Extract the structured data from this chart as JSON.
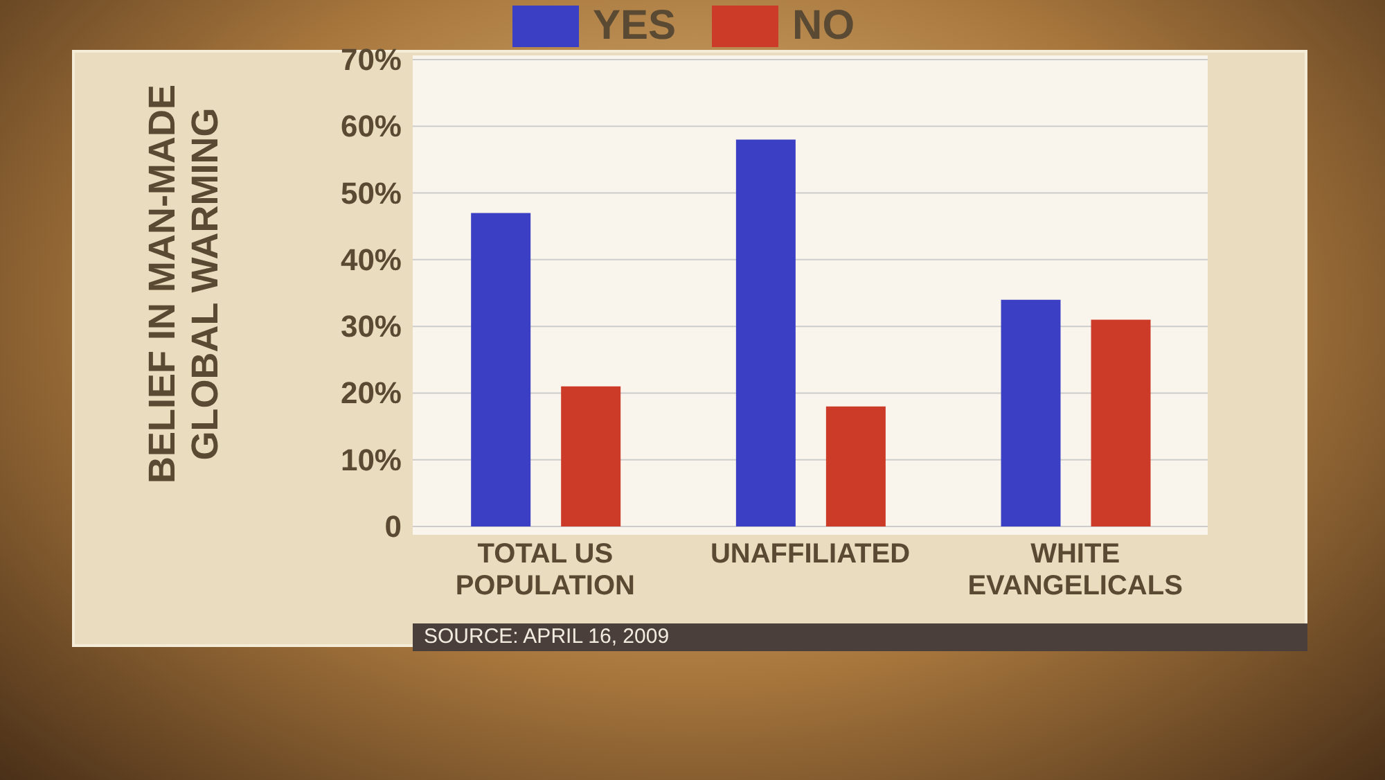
{
  "chart_data": {
    "type": "bar",
    "ylabel": "BELIEF IN MAN-MADE GLOBAL WARMING",
    "categories": [
      "TOTAL US POPULATION",
      "UNAFFILIATED",
      "WHITE EVANGELICALS"
    ],
    "series": [
      {
        "name": "YES",
        "color": "#3b3fc4",
        "values": [
          47,
          58,
          34
        ]
      },
      {
        "name": "NO",
        "color": "#cc3a28",
        "values": [
          21,
          18,
          31
        ]
      }
    ],
    "ylim": [
      0,
      70
    ],
    "yticks": [
      {
        "value": 0,
        "label": "0"
      },
      {
        "value": 10,
        "label": "10%"
      },
      {
        "value": 20,
        "label": "20%"
      },
      {
        "value": 30,
        "label": "30%"
      },
      {
        "value": 40,
        "label": "40%"
      },
      {
        "value": 50,
        "label": "50%"
      },
      {
        "value": 60,
        "label": "60%"
      },
      {
        "value": 70,
        "label": "70%"
      }
    ],
    "grid": "y",
    "legend": "top",
    "annotations": [
      "SOURCE: APRIL 16, 2009"
    ]
  }
}
